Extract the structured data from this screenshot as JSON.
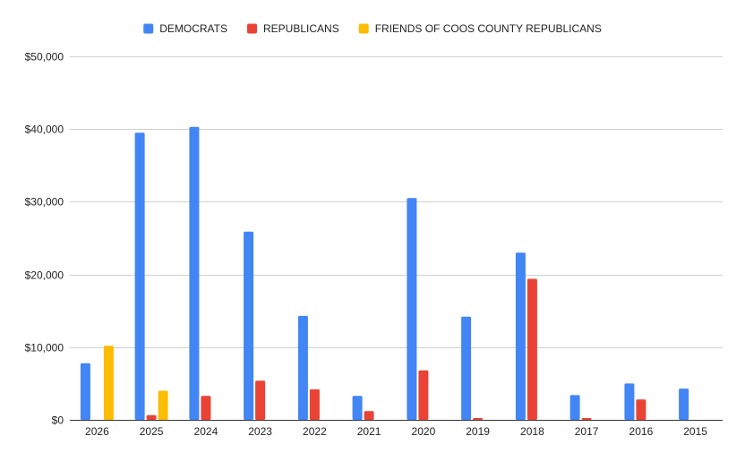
{
  "chart_data": {
    "type": "bar",
    "title": "",
    "xlabel": "",
    "ylabel": "",
    "categories": [
      "2026",
      "2025",
      "2024",
      "2023",
      "2022",
      "2021",
      "2020",
      "2019",
      "2018",
      "2017",
      "2016",
      "2015"
    ],
    "series": [
      {
        "name": "DEMOCRATS",
        "color": "#4285f4",
        "values": [
          7800,
          39500,
          40300,
          25900,
          14300,
          3300,
          30500,
          14200,
          23000,
          3400,
          5000,
          4300
        ]
      },
      {
        "name": "REPUBLICANS",
        "color": "#ea4335",
        "values": [
          0,
          650,
          3300,
          5400,
          4200,
          1200,
          6800,
          250,
          19400,
          250,
          2800,
          0
        ]
      },
      {
        "name": "FRIENDS OF COOS COUNTY REPUBLICANS",
        "color": "#fbbc04",
        "values": [
          10200,
          4000,
          0,
          0,
          0,
          0,
          0,
          0,
          0,
          0,
          0,
          0
        ]
      }
    ],
    "ylim": [
      0,
      50000
    ],
    "yticks": [
      0,
      10000,
      20000,
      30000,
      40000,
      50000
    ],
    "ytick_labels": [
      "$0",
      "$10,000",
      "$20,000",
      "$30,000",
      "$40,000",
      "$50,000"
    ],
    "grid": true,
    "legend_position": "top-center"
  }
}
